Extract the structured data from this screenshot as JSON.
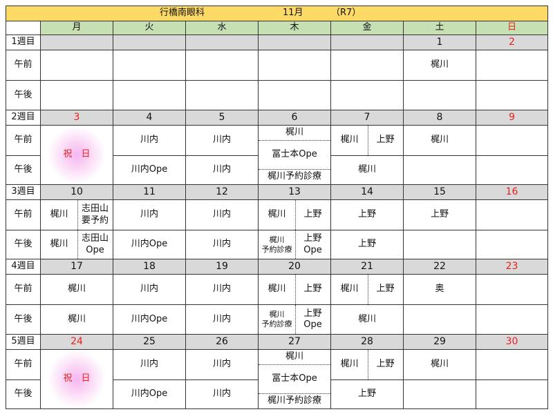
{
  "title": {
    "clinic": "行橋南眼科",
    "month": "11月",
    "era": "（R7）"
  },
  "weekdays": [
    "月",
    "火",
    "水",
    "木",
    "金",
    "土",
    "日"
  ],
  "row_labels": {
    "am": "午前",
    "pm": "午後"
  },
  "colors": {
    "title_bg": "#fdd966",
    "header_bg": "#c6e0b4",
    "date_bg": "#d9d9d9",
    "holiday_red": "#e8201c"
  },
  "weeks": [
    {
      "label": "1週目",
      "dates": [
        "",
        "",
        "",
        "",
        "",
        "1",
        "2"
      ],
      "holidays": [],
      "am": [
        "",
        "",
        "",
        "",
        "",
        "梶川",
        ""
      ],
      "pm": [
        "",
        "",
        "",
        "",
        "",
        "",
        ""
      ]
    },
    {
      "label": "2週目",
      "dates": [
        "3",
        "4",
        "5",
        "6",
        "7",
        "8",
        "9"
      ],
      "holidays": [
        0
      ],
      "am": [
        {
          "merged": "holiday",
          "text": "祝　日"
        },
        "川内",
        "川内",
        {
          "merged": "stack",
          "top": "梶川",
          "middle": "冨士本Ope",
          "bottom": "梶川予約診療"
        },
        [
          "梶川",
          "上野"
        ],
        "梶川",
        ""
      ],
      "pm": [
        null,
        "川内Ope",
        "川内",
        null,
        "梶川",
        "",
        ""
      ]
    },
    {
      "label": "3週目",
      "dates": [
        "10",
        "11",
        "12",
        "13",
        "14",
        "15",
        "16"
      ],
      "holidays": [],
      "am": [
        [
          "梶川",
          "志田山\n要予約"
        ],
        "川内",
        "川内",
        [
          "梶川",
          "上野"
        ],
        "上野",
        "上野",
        ""
      ],
      "pm": [
        [
          "梶川",
          "志田山\nOpe"
        ],
        "川内Ope",
        "川内",
        [
          "梶川\n予約診療",
          "上野\nOpe"
        ],
        "上野",
        "",
        ""
      ]
    },
    {
      "label": "4週目",
      "dates": [
        "17",
        "18",
        "19",
        "20",
        "21",
        "22",
        "23"
      ],
      "holidays": [],
      "am": [
        "梶川",
        "川内",
        "川内",
        [
          "梶川",
          "上野"
        ],
        [
          "梶川",
          "上野"
        ],
        "奥",
        ""
      ],
      "pm": [
        "梶川",
        "川内Ope",
        "川内",
        [
          "梶川\n予約診療",
          "上野\nOpe"
        ],
        "梶川",
        "",
        ""
      ]
    },
    {
      "label": "5週目",
      "dates": [
        "24",
        "25",
        "26",
        "27",
        "28",
        "29",
        "30"
      ],
      "holidays": [
        0
      ],
      "am": [
        {
          "merged": "holiday",
          "text": "祝　日"
        },
        "川内",
        "川内",
        {
          "merged": "stack",
          "top": "梶川",
          "middle": "冨士本Ope",
          "bottom": "梶川予約診療"
        },
        [
          "梶川",
          "上野"
        ],
        "梶川",
        ""
      ],
      "pm": [
        null,
        "川内Ope",
        "川内",
        null,
        "上野",
        "",
        ""
      ]
    }
  ]
}
